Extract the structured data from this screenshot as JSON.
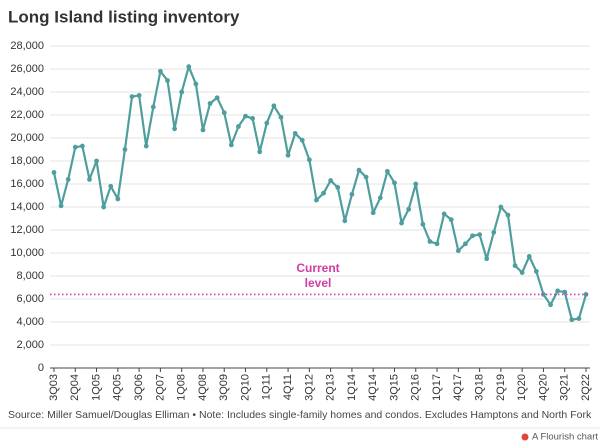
{
  "chart_data": {
    "type": "line",
    "title": "Long Island listing inventory",
    "categories": [
      "3Q03",
      null,
      null,
      "2Q04",
      null,
      null,
      "1Q05",
      null,
      null,
      "4Q05",
      null,
      null,
      "3Q06",
      null,
      null,
      "2Q07",
      null,
      null,
      "1Q08",
      null,
      null,
      "4Q08",
      null,
      null,
      "3Q09",
      null,
      null,
      "2Q10",
      null,
      null,
      "1Q11",
      null,
      null,
      "4Q11",
      null,
      null,
      "3Q12",
      null,
      null,
      "2Q13",
      null,
      null,
      "1Q14",
      null,
      null,
      "4Q14",
      null,
      null,
      "3Q15",
      null,
      null,
      "2Q16",
      null,
      null,
      "1Q17",
      null,
      null,
      "4Q17",
      null,
      null,
      "3Q18",
      null,
      null,
      "2Q19",
      null,
      null,
      "1Q20",
      null,
      null,
      "4Q20",
      null,
      null,
      "3Q21",
      null,
      null,
      "2Q22"
    ],
    "values": [
      17000,
      14100,
      16400,
      19200,
      19300,
      16400,
      18000,
      14000,
      15800,
      14700,
      19000,
      23600,
      23700,
      19300,
      22700,
      25800,
      25000,
      20800,
      24000,
      26200,
      24700,
      20700,
      23000,
      23500,
      22200,
      19400,
      21000,
      21900,
      21700,
      18800,
      21300,
      22800,
      21800,
      18500,
      20400,
      19800,
      18100,
      14600,
      15200,
      16300,
      15700,
      12800,
      15100,
      17200,
      16600,
      13500,
      14800,
      17100,
      16100,
      12600,
      13800,
      16000,
      12500,
      11000,
      10800,
      13400,
      12900,
      10200,
      10800,
      11500,
      11600,
      9500,
      11800,
      14000,
      13300,
      8900,
      8300,
      9700,
      8400,
      6400,
      5500,
      6700,
      6600,
      4200,
      4300,
      6400
    ],
    "color": "#4f9e9e",
    "ylim": [
      0,
      28000
    ],
    "yticks": [
      0,
      {
        "value": 2000,
        "label": "2,000"
      },
      {
        "value": 4000,
        "label": "4,000"
      },
      {
        "value": 6000,
        "label": "6,000"
      },
      {
        "value": 8000,
        "label": "8,000"
      },
      {
        "value": 10000,
        "label": "10,000"
      },
      {
        "value": 12000,
        "label": "12,000"
      },
      {
        "value": 14000,
        "label": "14,000"
      },
      {
        "value": 16000,
        "label": "16,000"
      },
      {
        "value": 18000,
        "label": "18,000"
      },
      {
        "value": 20000,
        "label": "20,000"
      },
      {
        "value": 22000,
        "label": "22,000"
      },
      {
        "value": 24000,
        "label": "24,000"
      },
      {
        "value": 26000,
        "label": "26,000"
      },
      {
        "value": 28000,
        "label": "28,000"
      }
    ],
    "grid": true,
    "reference_line": {
      "value": 6400,
      "label": [
        "Current",
        "level"
      ],
      "color": "#d23ba6"
    },
    "source": "Source: Miller Samuel/Douglas Elliman • Note: Includes single-family homes and condos. Excludes Hamptons and North Fork",
    "credit": "A Flourish chart"
  }
}
